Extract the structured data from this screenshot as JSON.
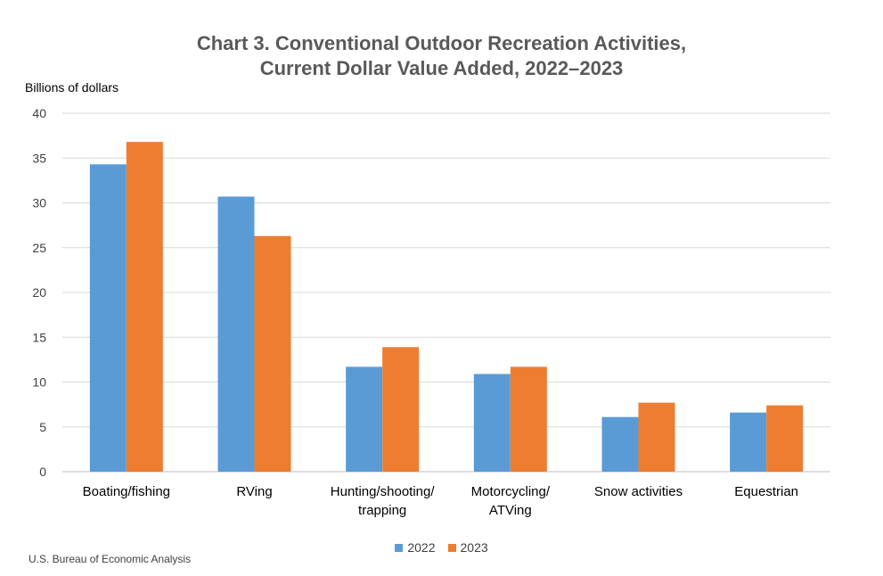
{
  "chart_data": {
    "type": "bar",
    "title_line1": "Chart 3. Conventional Outdoor Recreation Activities,",
    "title_line2": "Current Dollar Value Added, 2022–2023",
    "ylabel": "Billions of dollars",
    "xlabel": "",
    "ylim": [
      0,
      40
    ],
    "yticks": [
      0,
      5,
      10,
      15,
      20,
      25,
      30,
      35,
      40
    ],
    "grid": true,
    "legend_position": "bottom",
    "categories": [
      [
        "Boating/fishing"
      ],
      [
        "RVing"
      ],
      [
        "Hunting/shooting/",
        "trapping"
      ],
      [
        "Motorcycling/",
        "ATVing"
      ],
      [
        "Snow activities"
      ],
      [
        "Equestrian"
      ]
    ],
    "series": [
      {
        "name": "2022",
        "color": "#5b9bd5",
        "values": [
          34.3,
          30.7,
          11.7,
          10.9,
          6.1,
          6.6
        ]
      },
      {
        "name": "2023",
        "color": "#ed7d31",
        "values": [
          36.8,
          26.3,
          13.9,
          11.7,
          7.7,
          7.4
        ]
      }
    ],
    "source": "U.S. Bureau of Economic Analysis"
  }
}
